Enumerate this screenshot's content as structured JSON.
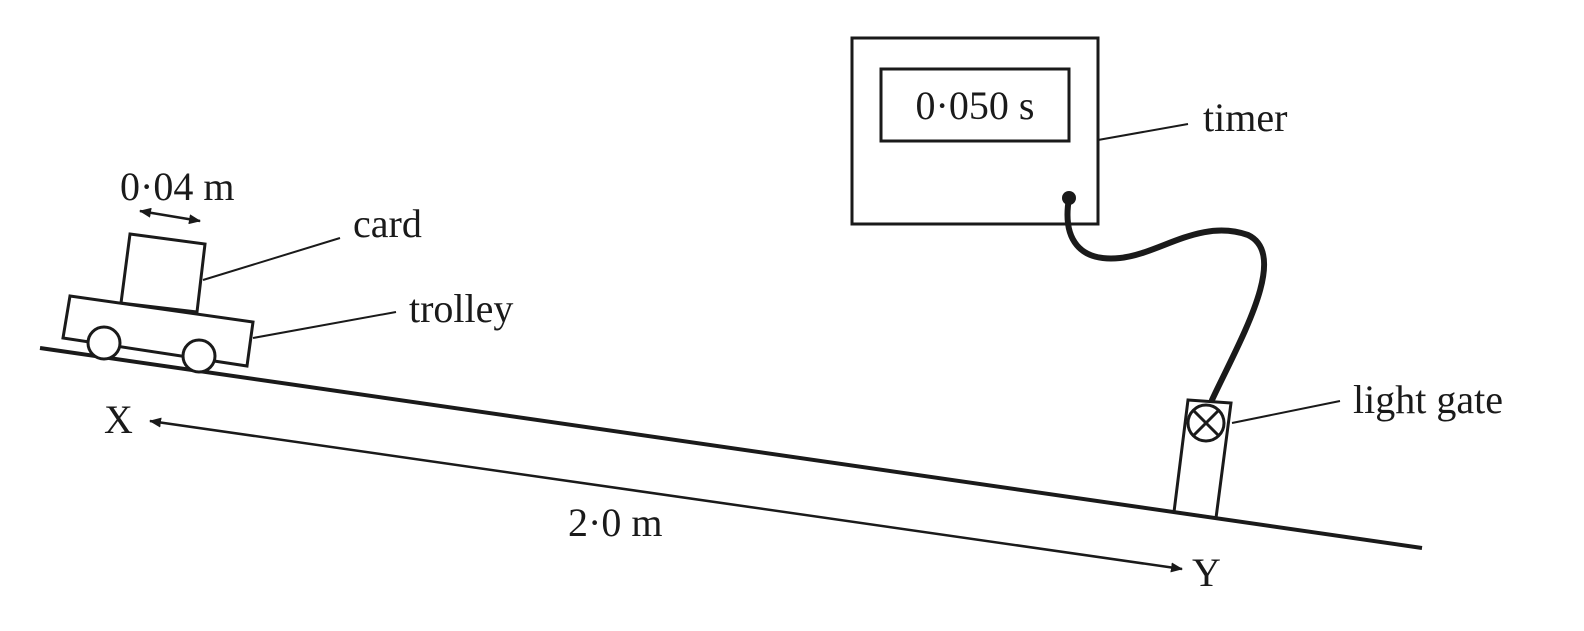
{
  "labels": {
    "card_width": "0·04 m",
    "card": "card",
    "trolley": "trolley",
    "timer_reading": "0·050 s",
    "timer": "timer",
    "light_gate": "light gate",
    "point_x": "X",
    "point_y": "Y",
    "distance": "2·0 m"
  }
}
